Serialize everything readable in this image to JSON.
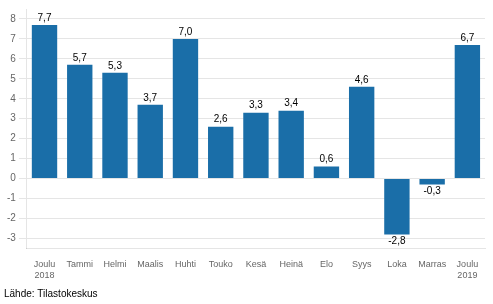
{
  "chart_data": {
    "type": "bar",
    "categories": [
      "Joulu\n2018",
      "Tammi",
      "Helmi",
      "Maalis",
      "Huhti",
      "Touko",
      "Kesä",
      "Heinä",
      "Elo",
      "Syys",
      "Loka",
      "Marras",
      "Joulu\n2019"
    ],
    "values": [
      7.7,
      5.7,
      5.3,
      3.7,
      7.0,
      2.6,
      3.3,
      3.4,
      0.6,
      4.6,
      -2.8,
      -0.3,
      6.7
    ],
    "value_labels": [
      "7,7",
      "5,7",
      "5,3",
      "3,7",
      "7,0",
      "2,6",
      "3,3",
      "3,4",
      "0,6",
      "4,6",
      "-2,8",
      "-0,3",
      "6,7"
    ],
    "data_labels": true,
    "color": "#1a6ea8",
    "ylim": [
      -3.5,
      8.5
    ],
    "yticks": [
      -3,
      -2,
      -1,
      0,
      1,
      2,
      3,
      4,
      5,
      6,
      7,
      8
    ],
    "grid": true,
    "annotations": [
      "Lähde: Tilastokeskus"
    ]
  }
}
